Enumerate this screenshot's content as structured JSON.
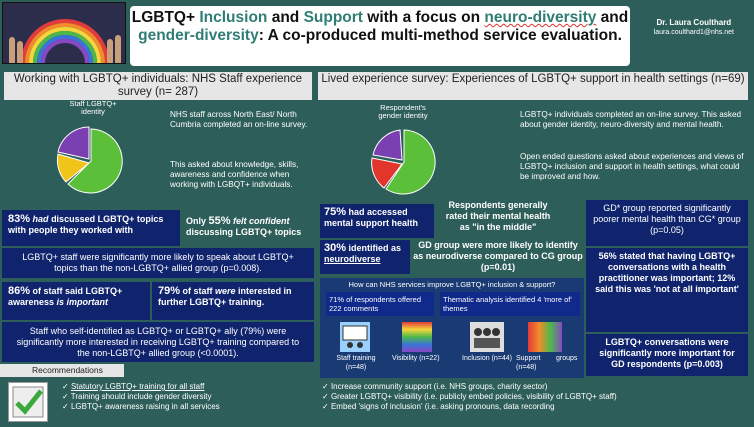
{
  "header": {
    "title_parts": [
      "LGBTQ+ ",
      "Inclusion",
      " and ",
      "Support",
      " with a focus on ",
      "neuro-diversity",
      " and ",
      "gender-diversity",
      ": A co-produced multi-method service evaluation."
    ],
    "author_name": "Dr. Laura Coulthard",
    "author_email": "laura.coulthard1@nhs.net"
  },
  "left": {
    "heading": "Working with LGBTQ+ individuals: NHS Staff experience survey (n= 287)",
    "chart_label": "Staff LGBTQ+ identity",
    "intro": "NHS staff across North East/ North Cumbria completed an on-line survey.",
    "intro2": "This asked about knowledge, skills, awareness and confidence when working with LGBQT+ individuals.",
    "stat1_pct": "83%",
    "stat1_verb": "had",
    "stat1_text": " discussed LGBTQ+ topics with people they worked with",
    "stat2_pre": "Only ",
    "stat2_pct": "55%",
    "stat2_verb": " felt confident",
    "stat2_text": " discussing LGBTQ+ topics",
    "stat3": "LGBTQ+ staff were significantly more likely to speak about LGBTQ+ topics than the non-LGBTQ+ allied group (p=0.008).",
    "stat4_pct": "86%",
    "stat4_text": " of staff said LGBTQ+ awareness ",
    "stat4_em": "is important",
    "stat5_pct": "79%",
    "stat5_text": " of staff ",
    "stat5_em": "were",
    "stat5_end": " interested in further LGBTQ+ training.",
    "stat6": "Staff who self-identified as LGBTQ+ or LGBTQ+ ally (79%) were significantly more interested in receiving LGBTQ+ training compared to the non-LGBTQ+ allied group (<0.0001)."
  },
  "recommendations": {
    "label": "Recommendations",
    "items": [
      "Statutory LGBTQ+ training for all staff",
      "Training should include gender diversity",
      "LGBTQ+ awareness raising in all services"
    ],
    "right_items": [
      "Increase community support (i.e. NHS groups, charity sector)",
      "Greater LGBTQ+ visibility (i.e. publicly embed policies, visibility of LGBTQ+ staff)",
      "Embed 'signs of inclusion' (i.e. asking pronouns, data recording"
    ]
  },
  "right": {
    "heading": "Lived experience survey: Experiences of LGBTQ+ support in health settings (n=69)",
    "chart_label": "Respondent's gender identity",
    "intro": "LGBTQ+ individuals completed an on-line survey. This asked about gender identity, neuro-diversity and mental health.",
    "intro2": "Open ended questions asked about experiences and views of LGBTQ+ inclusion and support in health settings, what could be improved and how.",
    "stat1_pct": "75%",
    "stat1_text": " had accessed mental support health",
    "stat2": "Respondents generally rated their mental health as \"in the middle\"",
    "stat3_pct": "30%",
    "stat3_text": " identified as ",
    "stat3_u": "neurodiverse",
    "stat4": "GD* group reported significantly poorer mental health than CG* group (p=0.05)",
    "stat5": "GD group were more likely to identify as neurodiverse compared to CG group (p=0.01)",
    "stat6": "56% stated that having LGBTQ+ conversations with a health practitioner was important; 12% said this was 'not at all important'",
    "stat7": "LGBTQ+ conversations were significantly more important for GD respondents (p=0.003)",
    "improve_title": "How can NHS services improve LGBTQ+ inclusion & support?",
    "resp_text": "71% of respondents offered 222 comments",
    "themes_text": "Thematic analysis identified 4 'more of' themes",
    "icons": [
      {
        "label": "Staff training",
        "n": "(n=48)"
      },
      {
        "label": "Visibility (n=22)",
        "n": ""
      },
      {
        "label": "Inclusion (n=44)",
        "n": ""
      },
      {
        "label": "Support",
        "n": "(n=48)"
      }
    ],
    "groups_label": "groups"
  },
  "colors": {
    "bg": "#2e5e5a",
    "navy": "#10246e",
    "teal": "#2f7d74",
    "pie_green": "#5bbf3a",
    "pie_yellow": "#f0c419",
    "pie_purple": "#7a3fb0",
    "pie_red": "#e2362d"
  }
}
